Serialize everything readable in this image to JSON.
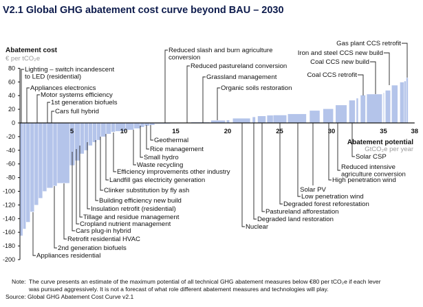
{
  "chart_data": {
    "type": "bar",
    "title": "V2.1 Global GHG abatement cost curve beyond BAU – 2030",
    "ylabel": "Abatement cost",
    "yunit": "€ per tCO₂e",
    "xlabel": "Abatement potential",
    "xunit": "GtCO₂e per year",
    "ylim": [
      -200,
      80
    ],
    "yticks": [
      80,
      60,
      40,
      20,
      0,
      -20,
      -40,
      -60,
      -80,
      -100,
      -120,
      -140,
      -160,
      -180,
      -200
    ],
    "xlim": [
      0,
      38
    ],
    "xticks": [
      5,
      10,
      15,
      20,
      25,
      30,
      35,
      38
    ],
    "grid": false,
    "bar_color": "#b4c4ea",
    "bars": [
      {
        "from": 0.0,
        "to": 0.3,
        "cost": -165
      },
      {
        "from": 0.3,
        "to": 0.6,
        "cost": -155
      },
      {
        "from": 0.6,
        "to": 1.0,
        "cost": -145
      },
      {
        "from": 1.0,
        "to": 1.4,
        "cost": -130
      },
      {
        "from": 1.4,
        "to": 1.8,
        "cost": -120
      },
      {
        "from": 1.8,
        "to": 2.2,
        "cost": -110
      },
      {
        "from": 2.2,
        "to": 2.6,
        "cost": -100
      },
      {
        "from": 2.6,
        "to": 3.2,
        "cost": -95
      },
      {
        "from": 3.2,
        "to": 3.6,
        "cost": -92
      },
      {
        "from": 3.6,
        "to": 4.8,
        "cost": -88
      },
      {
        "from": 4.8,
        "to": 5.3,
        "cost": -62
      },
      {
        "from": 5.3,
        "to": 5.8,
        "cost": -55
      },
      {
        "from": 5.8,
        "to": 6.2,
        "cost": -45
      },
      {
        "from": 6.2,
        "to": 6.6,
        "cost": -40
      },
      {
        "from": 6.6,
        "to": 7.0,
        "cost": -33
      },
      {
        "from": 7.0,
        "to": 7.4,
        "cost": -28
      },
      {
        "from": 7.4,
        "to": 7.8,
        "cost": -25
      },
      {
        "from": 7.8,
        "to": 8.3,
        "cost": -20
      },
      {
        "from": 8.3,
        "to": 8.8,
        "cost": -16
      },
      {
        "from": 8.8,
        "to": 9.2,
        "cost": -13
      },
      {
        "from": 9.2,
        "to": 10.2,
        "cost": -12
      },
      {
        "from": 10.2,
        "to": 11.0,
        "cost": -10
      },
      {
        "from": 11.0,
        "to": 11.6,
        "cost": -8
      },
      {
        "from": 11.6,
        "to": 12.0,
        "cost": -6
      },
      {
        "from": 12.0,
        "to": 12.5,
        "cost": -4
      },
      {
        "from": 12.5,
        "to": 13.0,
        "cost": -3
      },
      {
        "from": 13.0,
        "to": 14.5,
        "cost": -1
      },
      {
        "from": 14.5,
        "to": 16.5,
        "cost": 0.5
      },
      {
        "from": 16.5,
        "to": 18.3,
        "cost": 1
      },
      {
        "from": 18.4,
        "to": 19.8,
        "cost": 3.6
      },
      {
        "from": 19.9,
        "to": 20.2,
        "cost": 4
      },
      {
        "from": 20.5,
        "to": 22.2,
        "cost": 6.6
      },
      {
        "from": 22.4,
        "to": 22.7,
        "cost": 8.6
      },
      {
        "from": 22.9,
        "to": 23.7,
        "cost": 10
      },
      {
        "from": 23.8,
        "to": 24.4,
        "cost": 11
      },
      {
        "from": 24.4,
        "to": 25.7,
        "cost": 11.3
      },
      {
        "from": 25.8,
        "to": 27.6,
        "cost": 13
      },
      {
        "from": 27.9,
        "to": 28.9,
        "cost": 18
      },
      {
        "from": 29.2,
        "to": 30.2,
        "cost": 20.5
      },
      {
        "from": 30.4,
        "to": 31.5,
        "cost": 26
      },
      {
        "from": 31.7,
        "to": 32.3,
        "cost": 33
      },
      {
        "from": 32.4,
        "to": 32.6,
        "cost": 36
      },
      {
        "from": 32.8,
        "to": 33.3,
        "cost": 40.5
      },
      {
        "from": 33.4,
        "to": 34.9,
        "cost": 42
      },
      {
        "from": 35.0,
        "to": 35.1,
        "cost": 44
      },
      {
        "from": 35.2,
        "to": 35.7,
        "cost": 47.5
      },
      {
        "from": 35.8,
        "to": 36.4,
        "cost": 55
      },
      {
        "from": 36.6,
        "to": 37.0,
        "cost": 59.5
      },
      {
        "from": 37.0,
        "to": 37.2,
        "cost": 61
      },
      {
        "from": 37.2,
        "to": 37.4,
        "cost": 66
      }
    ],
    "annotations": [
      [
        "Lighting – switch incandescent",
        "to LED (residential)"
      ],
      [
        "Appliances electronics"
      ],
      [
        "Motor systems efficiency"
      ],
      [
        "1st generation biofuels"
      ],
      [
        "Cars full hybrid"
      ],
      [
        "Reduced slash and burn agriculture",
        "conversion"
      ],
      [
        "Reduced pastureland conversion"
      ],
      [
        "Grassland management"
      ],
      [
        "Organic soils restoration"
      ],
      [
        "Gas plant CCS retrofit"
      ],
      [
        "Iron and steel CCS new build"
      ],
      [
        "Coal CCS new build"
      ],
      [
        "Coal CCS retrofit"
      ],
      [
        "Geothermal"
      ],
      [
        "Rice management"
      ],
      [
        "Small hydro"
      ],
      [
        "Waste recycling"
      ],
      [
        "Efficiency improvements other industry"
      ],
      [
        "Landfill gas electricity generation"
      ],
      [
        "Clinker substitution by fly ash"
      ],
      [
        "Building efficiency new build"
      ],
      [
        "Insulation retrofit (residential)"
      ],
      [
        "Tillage and residue management"
      ],
      [
        "Cropland nutrient management"
      ],
      [
        "Cars plug-in hybrid"
      ],
      [
        "Retrofit residential HVAC"
      ],
      [
        "2nd generation biofuels"
      ],
      [
        "Appliances residential"
      ],
      [
        "Nuclear"
      ],
      [
        "Degraded land restoration"
      ],
      [
        "Pastureland afforestation"
      ],
      [
        "Degraded forest reforestation"
      ],
      [
        "Low penetration wind"
      ],
      [
        "Solar PV"
      ],
      [
        "High penetration wind"
      ],
      [
        "Reduced intensive",
        "agriculture conversion"
      ],
      [
        "Solar CSP"
      ]
    ]
  },
  "footer": {
    "note_label": "Note:",
    "note_line1": "The curve presents an estimate of the maximum potential of all technical GHG abatement measures below €80 per tCO₂e if each lever",
    "note_line2": "was pursued aggressively. It is not a forecast of what role different abatement measures and technologies will play.",
    "source": "Source: Global GHG Abatement Cost Curve v2.1"
  }
}
